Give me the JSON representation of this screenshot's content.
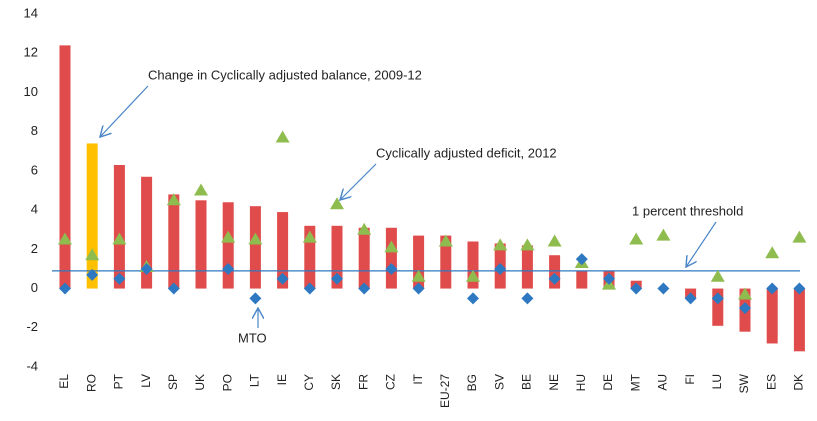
{
  "chart_data": {
    "type": "bar",
    "categories": [
      "EL",
      "RO",
      "PT",
      "LV",
      "SP",
      "UK",
      "PO",
      "LT",
      "IE",
      "CY",
      "SK",
      "FR",
      "CZ",
      "IT",
      "EU-27",
      "BG",
      "SV",
      "BE",
      "NE",
      "HU",
      "DE",
      "MT",
      "AU",
      "FI",
      "LU",
      "SW",
      "ES",
      "DK"
    ],
    "series": [
      {
        "kind": "bar",
        "colors": [
          "#e04b4b",
          "#ffc000",
          "#e04b4b",
          "#e04b4b",
          "#e04b4b",
          "#e04b4b",
          "#e04b4b",
          "#e04b4b",
          "#e04b4b",
          "#e04b4b",
          "#e04b4b",
          "#e04b4b",
          "#e04b4b",
          "#e04b4b",
          "#e04b4b",
          "#e04b4b",
          "#e04b4b",
          "#e04b4b",
          "#e04b4b",
          "#e04b4b",
          "#e04b4b",
          "#e04b4b",
          "#e04b4b",
          "#e04b4b",
          "#e04b4b",
          "#e04b4b",
          "#e04b4b",
          "#e04b4b"
        ],
        "values": [
          12.4,
          7.4,
          6.3,
          5.7,
          4.8,
          4.5,
          4.4,
          4.2,
          3.9,
          3.2,
          3.2,
          3.1,
          3.1,
          2.7,
          2.7,
          2.4,
          2.3,
          2.2,
          1.7,
          0.9,
          0.9,
          0.4,
          0,
          -0.5,
          -1.9,
          -2.2,
          -2.8,
          -3.2
        ]
      },
      {
        "kind": "triangle",
        "color": "#8fbc4f",
        "values": [
          2.5,
          1.7,
          2.5,
          1.1,
          4.5,
          5.0,
          2.6,
          2.5,
          7.7,
          2.6,
          4.3,
          3.0,
          2.1,
          0.6,
          2.4,
          0.6,
          2.2,
          2.2,
          2.4,
          1.3,
          0.2,
          2.5,
          2.7,
          null,
          0.6,
          -0.3,
          1.8,
          2.6
        ]
      },
      {
        "kind": "diamond",
        "color": "#2e78c2",
        "values": [
          0,
          0.7,
          0.5,
          1.0,
          0,
          null,
          1.0,
          -0.5,
          0.5,
          0,
          0.5,
          0,
          1.0,
          0,
          null,
          -0.5,
          1.0,
          -0.5,
          0.5,
          1.5,
          0.5,
          0,
          0,
          -0.5,
          -0.5,
          -1.0,
          0,
          0
        ]
      }
    ],
    "threshold": {
      "value": 0.9,
      "color": "#2e78c2"
    },
    "annotations": [
      "Change in Cyclically adjusted balance, 2009-12",
      "Cyclically adjusted deficit, 2012",
      "1 percent threshold",
      "MTO"
    ],
    "ylim": [
      -4,
      14
    ],
    "yticks": [
      -4,
      -2,
      0,
      2,
      4,
      6,
      8,
      10,
      12,
      14
    ]
  }
}
